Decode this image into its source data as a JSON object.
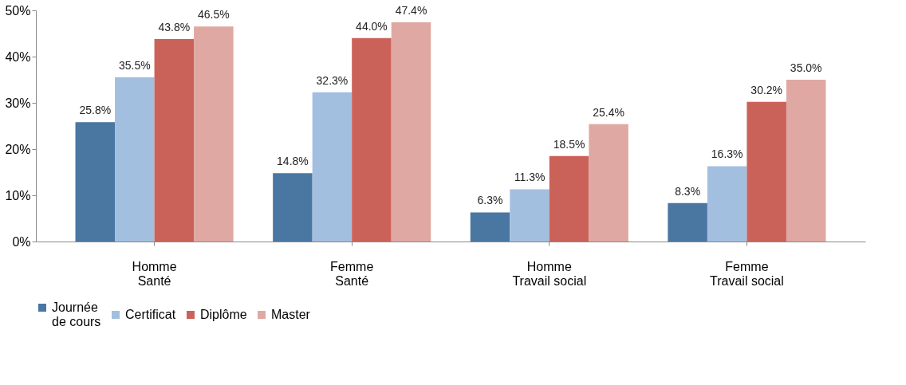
{
  "chart_data": {
    "type": "bar",
    "categories": [
      "Homme\nSanté",
      "Femme\nSanté",
      "Homme\nTravail social",
      "Femme\nTravail social"
    ],
    "series": [
      {
        "name": "Journée\nde cours",
        "color": "#4a76a2",
        "values": [
          25.8,
          14.8,
          6.3,
          8.3
        ],
        "value_labels": [
          "25.8%",
          "14.8%",
          "6.3%",
          "8.3%"
        ]
      },
      {
        "name": "Certificat",
        "color": "#a3bfdf",
        "values": [
          35.5,
          32.3,
          11.3,
          16.3
        ],
        "value_labels": [
          "35.5%",
          "32.3%",
          "11.3%",
          "16.3%"
        ]
      },
      {
        "name": "Diplôme",
        "color": "#cb6259",
        "values": [
          43.8,
          44.0,
          18.5,
          30.2
        ],
        "value_labels": [
          "43.8%",
          "44.0%",
          "18.5%",
          "30.2%"
        ]
      },
      {
        "name": "Master",
        "color": "#e0a8a3",
        "values": [
          46.5,
          47.4,
          25.4,
          35.0
        ],
        "value_labels": [
          "46.5%",
          "47.4%",
          "25.4%",
          "35.0%"
        ]
      }
    ],
    "ylim": [
      0,
      50
    ],
    "yticks": [
      {
        "value": 0,
        "label": "0%"
      },
      {
        "value": 10,
        "label": "10%"
      },
      {
        "value": 20,
        "label": "20%"
      },
      {
        "value": 30,
        "label": "30%"
      },
      {
        "value": 40,
        "label": "40%"
      },
      {
        "value": 50,
        "label": "50%"
      }
    ],
    "grid": false,
    "legend": "bottom"
  }
}
